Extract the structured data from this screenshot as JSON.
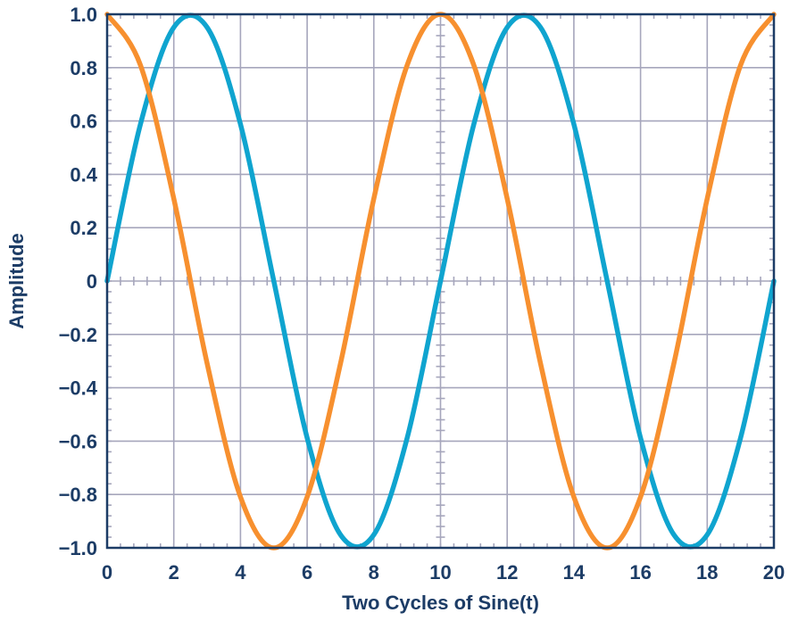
{
  "chart_data": {
    "type": "line",
    "xlabel": "Two Cycles of Sine(t)",
    "ylabel": "Amplitude",
    "xlim": [
      0,
      20
    ],
    "ylim": [
      -1.0,
      1.0
    ],
    "grid": true,
    "x_tick_labels": [
      "0",
      "2",
      "4",
      "6",
      "8",
      "10",
      "12",
      "14",
      "16",
      "18",
      "20"
    ],
    "x_tick_values": [
      0,
      2,
      4,
      6,
      8,
      10,
      12,
      14,
      16,
      18,
      20
    ],
    "y_tick_labels": [
      "1.0",
      "0.8",
      "0.6",
      "0.4",
      "0.2",
      "0",
      "−0.2",
      "−0.4",
      "−0.6",
      "−0.8",
      "−1.0"
    ],
    "y_tick_values": [
      1.0,
      0.8,
      0.6,
      0.4,
      0.2,
      0,
      -0.2,
      -0.4,
      -0.6,
      -0.8,
      -1.0
    ],
    "x": [
      0,
      1,
      2,
      3,
      4,
      5,
      6,
      7,
      8,
      9,
      10,
      11,
      12,
      13,
      14,
      15,
      16,
      17,
      18,
      19,
      20
    ],
    "series": [
      {
        "color": "#0fa4cf",
        "values": [
          0,
          0.588,
          0.951,
          0.951,
          0.588,
          0,
          -0.588,
          -0.951,
          -0.951,
          -0.588,
          0,
          0.588,
          0.951,
          0.951,
          0.588,
          0,
          -0.588,
          -0.951,
          -0.951,
          -0.588,
          0
        ]
      },
      {
        "color": "#f7902f",
        "values": [
          1.0,
          0.809,
          0.309,
          -0.309,
          -0.809,
          -1.0,
          -0.809,
          -0.309,
          0.309,
          0.809,
          1.0,
          0.809,
          0.309,
          -0.309,
          -0.809,
          -1.0,
          -0.809,
          -0.309,
          0.309,
          0.809,
          1.0
        ]
      }
    ]
  },
  "colors": {
    "text": "#1c3c66",
    "axis": "#1c3c66",
    "grid": "#a6a6bc",
    "background": "#ffffff"
  }
}
